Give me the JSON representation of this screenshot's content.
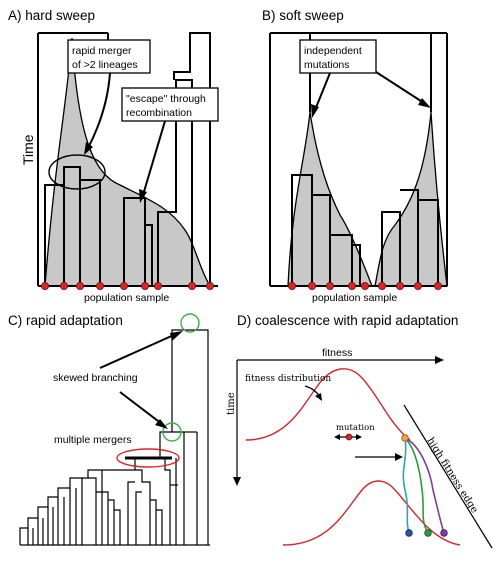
{
  "panelA": {
    "title": "A) hard sweep",
    "yaxis": "Time",
    "annot1_line1": "rapid merger",
    "annot1_line2": "of >2 lineages",
    "annot2_line1": "\"escape\" through",
    "annot2_line2": "recombination",
    "xlabel": "population sample"
  },
  "panelB": {
    "title": "B) soft sweep",
    "annot_line1": "independent",
    "annot_line2": "mutations",
    "xlabel": "population sample"
  },
  "panelC": {
    "title": "C) rapid adaptation",
    "annot1": "skewed branching",
    "annot2": "multiple mergers"
  },
  "panelD": {
    "title": "D) coalescence with rapid adaptation",
    "x_axis": "fitness",
    "y_axis": "time",
    "dist_label": "fitness distribution",
    "mutation_label": "mutation",
    "edge_label": "high fitness edge"
  },
  "colors": {
    "shading": "#c8c8c8",
    "sample_dot": "#d6262a",
    "fitness_curve": "#d6262a",
    "highlight_circle": "#3ab04a",
    "lineage_teal": "#2aa6b8",
    "lineage_green": "#2e9b3e",
    "lineage_purple": "#7a3fa0"
  }
}
